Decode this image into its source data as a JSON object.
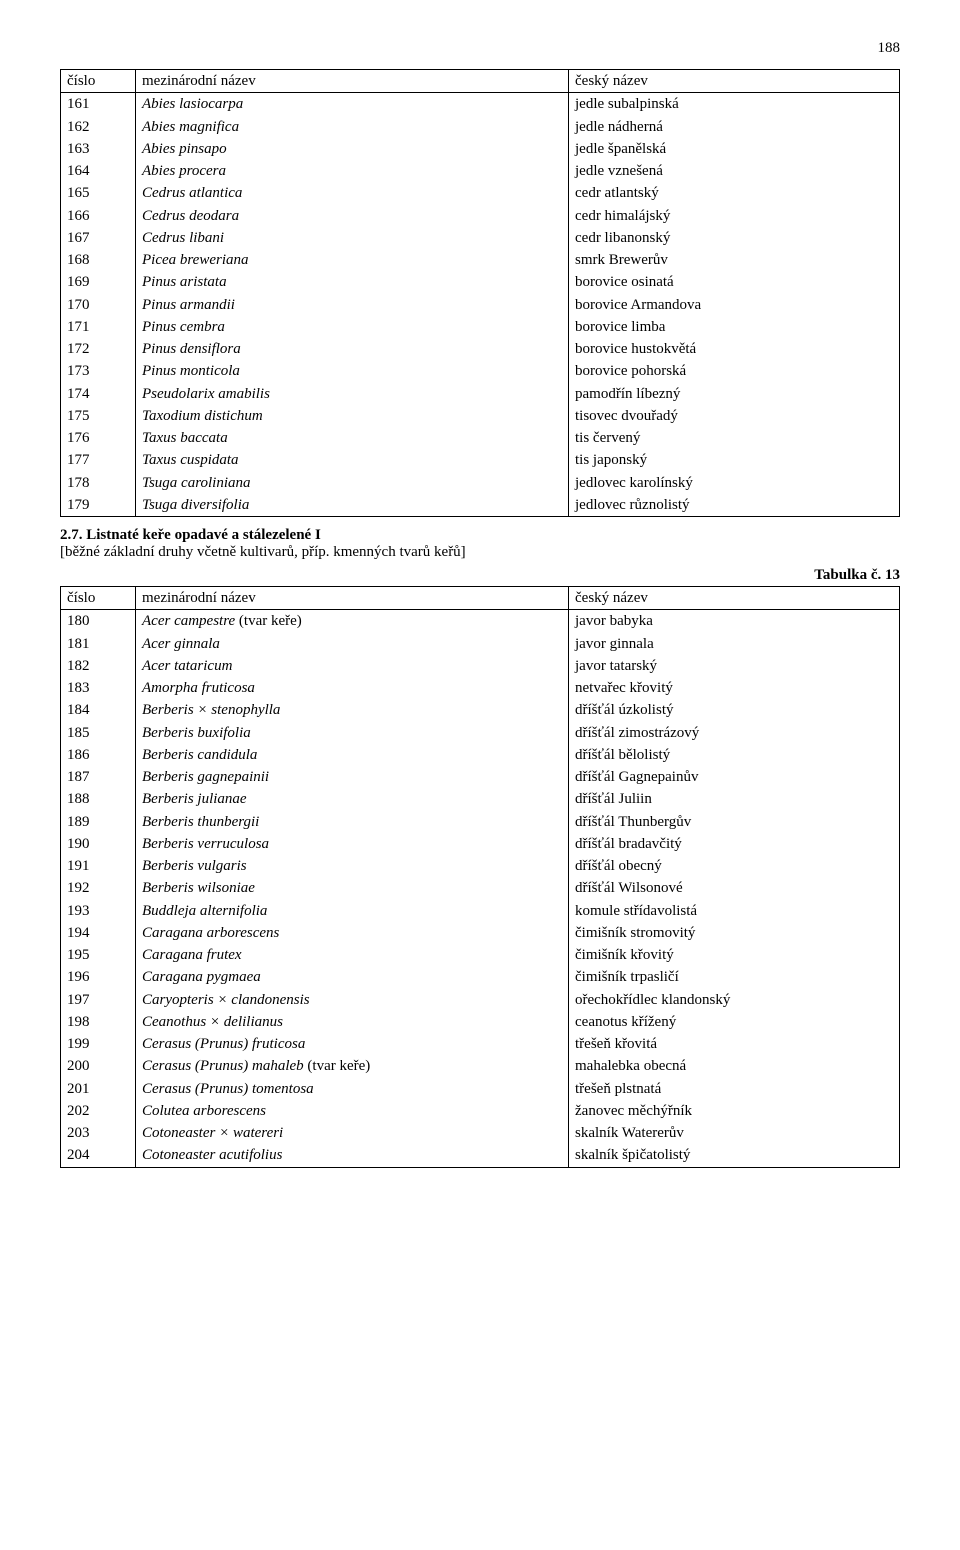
{
  "page_number": "188",
  "table1": {
    "headers": {
      "num": "číslo",
      "int": "mezinárodní název",
      "cz": "český název"
    },
    "rows": [
      {
        "num": "161",
        "int": "Abies lasiocarpa",
        "cz": "jedle subalpinská"
      },
      {
        "num": "162",
        "int": "Abies magnifica",
        "cz": "jedle nádherná"
      },
      {
        "num": "163",
        "int": "Abies pinsapo",
        "cz": "jedle španělská"
      },
      {
        "num": "164",
        "int": "Abies procera",
        "cz": "jedle vznešená"
      },
      {
        "num": "165",
        "int": "Cedrus atlantica",
        "cz": "cedr atlantský"
      },
      {
        "num": "166",
        "int": "Cedrus deodara",
        "cz": "cedr himalájský"
      },
      {
        "num": "167",
        "int": "Cedrus libani",
        "cz": "cedr libanonský"
      },
      {
        "num": "168",
        "int": "Picea breweriana",
        "cz": "smrk Brewerův"
      },
      {
        "num": "169",
        "int": "Pinus aristata",
        "cz": "borovice osinatá"
      },
      {
        "num": "170",
        "int": "Pinus armandii",
        "cz": "borovice Armandova"
      },
      {
        "num": "171",
        "int": "Pinus cembra",
        "cz": "borovice limba"
      },
      {
        "num": "172",
        "int": "Pinus densiflora",
        "cz": "borovice hustokvětá"
      },
      {
        "num": "173",
        "int": "Pinus monticola",
        "cz": "borovice pohorská"
      },
      {
        "num": "174",
        "int": "Pseudolarix amabilis",
        "cz": "pamodřín líbezný"
      },
      {
        "num": "175",
        "int": "Taxodium distichum",
        "cz": "tisovec dvouřadý"
      },
      {
        "num": "176",
        "int": "Taxus baccata",
        "cz": "tis červený"
      },
      {
        "num": "177",
        "int": "Taxus cuspidata",
        "cz": "tis japonský"
      },
      {
        "num": "178",
        "int": "Tsuga caroliniana",
        "cz": "jedlovec karolínský"
      },
      {
        "num": "179",
        "int": "Tsuga diversifolia",
        "cz": "jedlovec různolistý"
      }
    ]
  },
  "section": {
    "title": "2.7. Listnaté keře opadavé a stálezelené I",
    "subtitle": "[běžné základní druhy včetně kultivarů, příp. kmenných tvarů keřů]",
    "table_label": "Tabulka č. 13"
  },
  "table2": {
    "headers": {
      "num": "číslo",
      "int": "mezinárodní název",
      "cz": "český název"
    },
    "rows": [
      {
        "num": "180",
        "int_pre": "Acer campestre",
        "int_post": " (tvar keře)",
        "cz": "javor babyka"
      },
      {
        "num": "181",
        "int": "Acer ginnala",
        "cz": "javor ginnala"
      },
      {
        "num": "182",
        "int": "Acer tataricum",
        "cz": "javor tatarský"
      },
      {
        "num": "183",
        "int": "Amorpha fruticosa",
        "cz": "netvařec křovitý"
      },
      {
        "num": "184",
        "int": "Berberis × stenophylla",
        "cz": "dříšťál úzkolistý"
      },
      {
        "num": "185",
        "int": "Berberis buxifolia",
        "cz": "dříšťál zimostrázový"
      },
      {
        "num": "186",
        "int": "Berberis candidula",
        "cz": "dříšťál bělolistý"
      },
      {
        "num": "187",
        "int": "Berberis gagnepainii",
        "cz": "dříšťál Gagnepainův"
      },
      {
        "num": "188",
        "int": "Berberis julianae",
        "cz": "dříšťál Juliin"
      },
      {
        "num": "189",
        "int": "Berberis thunbergii",
        "cz": "dříšťál Thunbergův"
      },
      {
        "num": "190",
        "int": "Berberis verruculosa",
        "cz": "dříšťál bradavčitý"
      },
      {
        "num": "191",
        "int": "Berberis vulgaris",
        "cz": "dříšťál obecný"
      },
      {
        "num": "192",
        "int": "Berberis wilsoniae",
        "cz": "dříšťál Wilsonové"
      },
      {
        "num": "193",
        "int": "Buddleja alternifolia",
        "cz": "komule střídavolistá"
      },
      {
        "num": "194",
        "int": "Caragana arborescens",
        "cz": "čimišník stromovitý"
      },
      {
        "num": "195",
        "int": "Caragana frutex",
        "cz": "čimišník křovitý"
      },
      {
        "num": "196",
        "int": "Caragana pygmaea",
        "cz": "čimišník trpasličí"
      },
      {
        "num": "197",
        "int": "Caryopteris × clandonensis",
        "cz": "ořechokřídlec klandonský"
      },
      {
        "num": "198",
        "int": "Ceanothus × delilianus",
        "cz": "ceanotus křížený"
      },
      {
        "num": "199",
        "int": "Cerasus (Prunus) fruticosa",
        "cz": "třešeň křovitá"
      },
      {
        "num": "200",
        "int_pre": "Cerasus (Prunus) mahaleb",
        "int_post": " (tvar keře)",
        "cz": "mahalebka obecná"
      },
      {
        "num": "201",
        "int": "Cerasus (Prunus) tomentosa",
        "cz": "třešeň plstnatá"
      },
      {
        "num": "202",
        "int": "Colutea arborescens",
        "cz": "žanovec měchýřník"
      },
      {
        "num": "203",
        "int": "Cotoneaster × watereri",
        "cz": "skalník Watererův"
      },
      {
        "num": "204",
        "int": "Cotoneaster acutifolius",
        "cz": "skalník špičatolistý"
      }
    ]
  }
}
